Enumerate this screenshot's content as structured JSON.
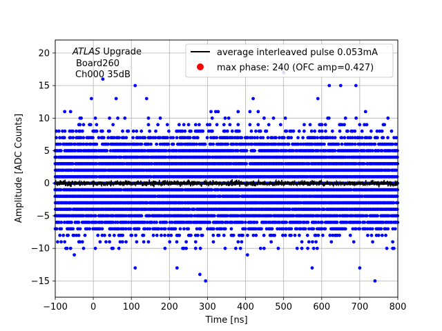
{
  "chart_data": {
    "type": "scatter",
    "title": "",
    "xlabel": "Time [ns]",
    "ylabel": "Amplitude [ADC Counts]",
    "xlim": [
      -100,
      800
    ],
    "ylim": [
      -17.5,
      22
    ],
    "xticks": [
      -100,
      0,
      100,
      200,
      300,
      400,
      500,
      600,
      700,
      800
    ],
    "yticks": [
      -15,
      -10,
      -5,
      0,
      5,
      10,
      15,
      20
    ],
    "grid": true,
    "legend_position": "top-right",
    "annotation": {
      "line1_italic": "ATLAS",
      "line1_rest": " Upgrade",
      "line2": "Board260",
      "line3": "Ch000 35dB"
    },
    "series": [
      {
        "name": "average interleaved pulse 0.053mA",
        "kind": "line",
        "color": "#000000",
        "x_range": [
          -100,
          800
        ],
        "y_mean": 0.0,
        "y_spread": 0.6
      },
      {
        "name": "max phase: 240 (OFC amp=0.427)",
        "kind": "marker",
        "color": "#ff0000",
        "points": []
      },
      {
        "name": "",
        "kind": "samples",
        "color": "#0000ff",
        "x_range": [
          -100,
          800
        ],
        "dense_y_range": [
          -8,
          8
        ],
        "outliers": [
          {
            "x": 25,
            "y": 16
          },
          {
            "x": 110,
            "y": 15
          },
          {
            "x": 500,
            "y": 17
          },
          {
            "x": 620,
            "y": 15
          },
          {
            "x": 650,
            "y": 15
          },
          {
            "x": 690,
            "y": 15
          },
          {
            "x": -5,
            "y": 13
          },
          {
            "x": 60,
            "y": 13
          },
          {
            "x": 140,
            "y": 13
          },
          {
            "x": 420,
            "y": 13
          },
          {
            "x": 590,
            "y": 13
          },
          {
            "x": 110,
            "y": -13
          },
          {
            "x": 220,
            "y": -13
          },
          {
            "x": 280,
            "y": -14
          },
          {
            "x": 295,
            "y": -15
          },
          {
            "x": 575,
            "y": -13
          },
          {
            "x": 700,
            "y": -13
          },
          {
            "x": 740,
            "y": -15
          },
          {
            "x": 405,
            "y": -11
          },
          {
            "x": -50,
            "y": -11
          }
        ]
      }
    ]
  }
}
